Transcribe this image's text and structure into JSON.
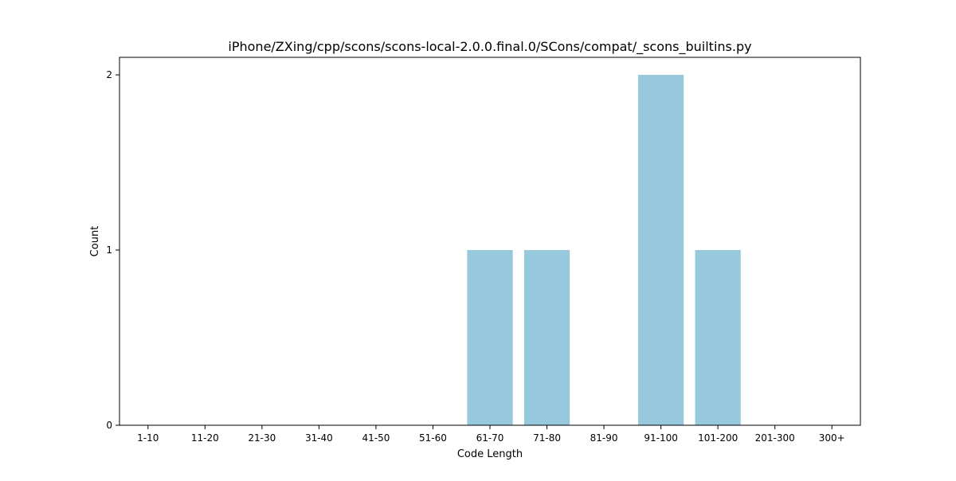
{
  "chart_data": {
    "type": "bar",
    "title": "iPhone/ZXing/cpp/scons/scons-local-2.0.0.final.0/SCons/compat/_scons_builtins.py",
    "xlabel": "Code Length",
    "ylabel": "Count",
    "categories": [
      "1-10",
      "11-20",
      "21-30",
      "31-40",
      "41-50",
      "51-60",
      "61-70",
      "71-80",
      "81-90",
      "91-100",
      "101-200",
      "201-300",
      "300+"
    ],
    "values": [
      0,
      0,
      0,
      0,
      0,
      0,
      1,
      1,
      0,
      2,
      1,
      0,
      0
    ],
    "ylim": [
      0,
      2.1
    ],
    "yticks": [
      0,
      1,
      2
    ],
    "bar_color": "#96c9dd",
    "grid": false,
    "legend": "none"
  }
}
